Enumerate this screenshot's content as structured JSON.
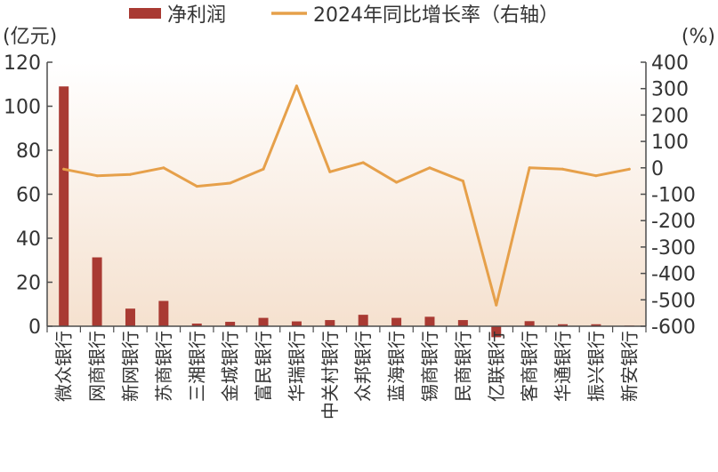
{
  "chart_data": {
    "type": "bar+line",
    "categories": [
      "微众银行",
      "网商银行",
      "新网银行",
      "苏商银行",
      "三湘银行",
      "金城银行",
      "富民银行",
      "华瑞银行",
      "中关村银行",
      "众邦银行",
      "蓝海银行",
      "锡商银行",
      "民商银行",
      "亿联银行",
      "客商银行",
      "华通银行",
      "振兴银行",
      "新安银行"
    ],
    "series": [
      {
        "name": "净利润",
        "type": "bar",
        "axis": "left",
        "color": "#a93a33",
        "values": [
          109,
          31.3,
          8,
          11.5,
          1.2,
          2,
          3.8,
          2.2,
          2.8,
          5.2,
          3.8,
          4.3,
          2.8,
          -5,
          2.3,
          0.9,
          0.9,
          0.3
        ]
      },
      {
        "name": "2024年同比增长率（右轴）",
        "type": "line",
        "axis": "right",
        "color": "#e6a04a",
        "values": [
          -5,
          -30,
          -25,
          0,
          -70,
          -58,
          -5,
          310,
          -15,
          20,
          -55,
          0,
          -50,
          -520,
          0,
          -5,
          -30,
          -5
        ]
      }
    ],
    "left_axis": {
      "unit": "(亿元)",
      "ylim": [
        0,
        120
      ],
      "ticks": [
        0,
        20,
        40,
        60,
        80,
        100,
        120
      ]
    },
    "right_axis": {
      "unit": "(%)",
      "ylim": [
        -600,
        400
      ],
      "ticks": [
        400,
        300,
        200,
        100,
        0,
        -100,
        -200,
        -300,
        -400,
        -500,
        -600
      ]
    },
    "legend": {
      "placement": "top"
    },
    "grid": false,
    "colors": {
      "bar": "#a93a33",
      "line": "#e6a04a",
      "axis": "#4d4d4d",
      "bg_top": "#ffffff",
      "bg_bottom": "#f5e1cf"
    }
  }
}
